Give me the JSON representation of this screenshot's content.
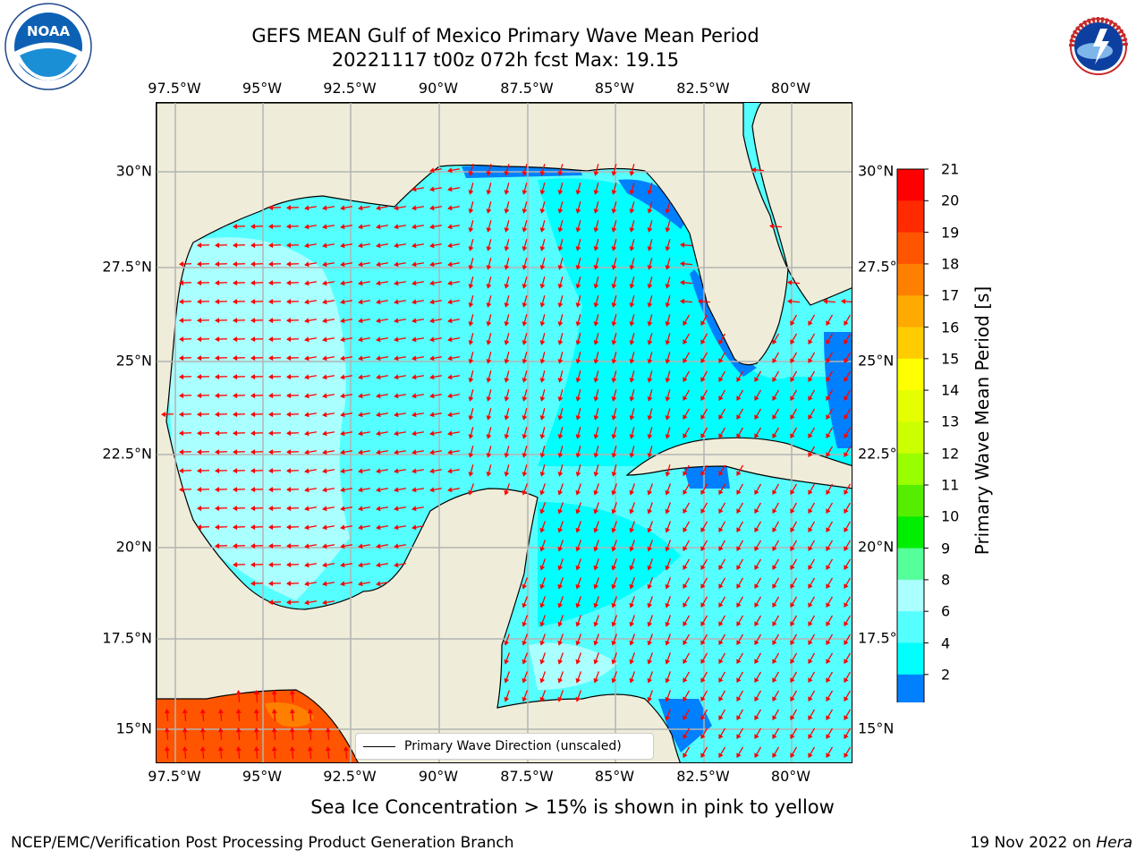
{
  "title": {
    "line1": "GEFS MEAN Gulf of Mexico Primary Wave Mean Period",
    "line2": "20221117 t00z 072h fcst   Max: 19.15"
  },
  "logos": {
    "left": {
      "icon": "noaa-logo",
      "text": "NOAA"
    },
    "right": {
      "icon": "national-weather-service-logo",
      "text": "NATIONAL WEATHER SERVICE"
    }
  },
  "axes": {
    "lon_labels": [
      "97.5°W",
      "95°W",
      "92.5°W",
      "90°W",
      "87.5°W",
      "85°W",
      "82.5°W",
      "80°W"
    ],
    "lat_labels": [
      "30°N",
      "27.5°N",
      "25°N",
      "22.5°N",
      "20°N",
      "17.5°N",
      "15°N"
    ]
  },
  "colorbar": {
    "title": "Primary Wave Mean Period [s]",
    "labels": [
      "21",
      "20",
      "19",
      "18",
      "17",
      "16",
      "15",
      "14",
      "13",
      "12",
      "11",
      "10",
      "9",
      "8",
      "6",
      "4",
      "2"
    ],
    "colors": [
      "#ff0000",
      "#ff2a00",
      "#ff5500",
      "#ff7f00",
      "#ffaa00",
      "#ffcc00",
      "#ffff00",
      "#e5ff00",
      "#ccff00",
      "#99ff00",
      "#55ee00",
      "#00ee00",
      "#55ff99",
      "#aaffff",
      "#55ffff",
      "#00ffff",
      "#0080ff"
    ],
    "under_color": "#0000ff"
  },
  "map": {
    "colors": {
      "land": "#efecd9",
      "ocean": "#55ffff",
      "mid": "#00ffff",
      "low": "#0080ff",
      "light": "#aaffff",
      "pacific_hi": "#ff5500",
      "pacific_mid": "#ff7f00",
      "grid": "#b3b3b3",
      "arrow": "#ff0000",
      "coast": "#000000"
    }
  },
  "legend": {
    "label": "Primary Wave Direction (unscaled)"
  },
  "note": "Sea Ice Concentration > 15% is shown in pink to yellow",
  "footer": {
    "left": "NCEP/EMC/Verification Post Processing Product Generation Branch",
    "right_date": "19 Nov 2022 on ",
    "right_machine": "Hera"
  }
}
